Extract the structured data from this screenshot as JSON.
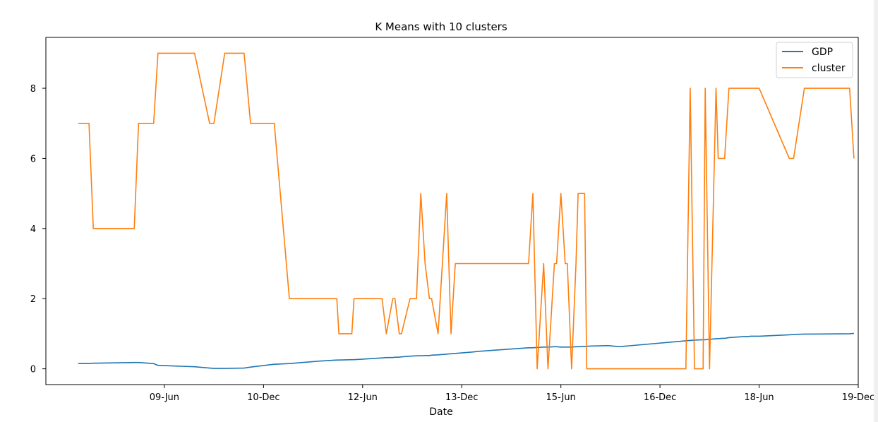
{
  "chart_data": {
    "type": "line",
    "title": "K Means with 10 clusters",
    "xlabel": "Date",
    "ylabel": "",
    "x_range": [
      -15,
      362
    ],
    "ylim": [
      -0.45,
      9.45
    ],
    "x_ticks": [
      {
        "x": 40,
        "label": "09-Jun"
      },
      {
        "x": 86,
        "label": "10-Dec"
      },
      {
        "x": 132,
        "label": "12-Jun"
      },
      {
        "x": 178,
        "label": "13-Dec"
      },
      {
        "x": 224,
        "label": "15-Jun"
      },
      {
        "x": 270,
        "label": "16-Dec"
      },
      {
        "x": 316,
        "label": "18-Jun"
      },
      {
        "x": 362,
        "label": "19-Dec"
      }
    ],
    "y_ticks": [
      0,
      2,
      4,
      6,
      8
    ],
    "grid": false,
    "legend": "top-right",
    "x": [
      0,
      5,
      7,
      26,
      28,
      35,
      37,
      54,
      61,
      63,
      68,
      77,
      80,
      84,
      91,
      98,
      100,
      112,
      120,
      121,
      127,
      128,
      141,
      143,
      146,
      147,
      149,
      150,
      154,
      157,
      159,
      161,
      163,
      164,
      167,
      171,
      173,
      175,
      177,
      179,
      181,
      183,
      186,
      209,
      211,
      213,
      216,
      218,
      221,
      222,
      224,
      226,
      227,
      229,
      231,
      232,
      235,
      236,
      238,
      239,
      245,
      246,
      248,
      251,
      282,
      284,
      286,
      290,
      291,
      293,
      296,
      297,
      299,
      300,
      302,
      309,
      311,
      312,
      313,
      316,
      330,
      332,
      337,
      339,
      358,
      360
    ],
    "series": [
      {
        "name": "GDP",
        "color": "#1f77b4",
        "values": [
          0.15,
          0.15,
          0.16,
          0.18,
          0.18,
          0.15,
          0.1,
          0.06,
          0.02,
          0.01,
          0.01,
          0.02,
          0.05,
          0.08,
          0.13,
          0.15,
          0.16,
          0.22,
          0.25,
          0.25,
          0.26,
          0.26,
          0.31,
          0.32,
          0.32,
          0.33,
          0.33,
          0.34,
          0.36,
          0.37,
          0.37,
          0.38,
          0.38,
          0.39,
          0.4,
          0.42,
          0.43,
          0.44,
          0.45,
          0.46,
          0.47,
          0.48,
          0.5,
          0.6,
          0.6,
          0.61,
          0.62,
          0.62,
          0.63,
          0.63,
          0.62,
          0.62,
          0.62,
          0.62,
          0.63,
          0.63,
          0.64,
          0.64,
          0.65,
          0.65,
          0.66,
          0.66,
          0.65,
          0.63,
          0.8,
          0.81,
          0.82,
          0.83,
          0.83,
          0.84,
          0.86,
          0.86,
          0.87,
          0.87,
          0.89,
          0.92,
          0.92,
          0.93,
          0.93,
          0.93,
          0.97,
          0.98,
          0.99,
          0.99,
          1.0,
          1.01
        ]
      },
      {
        "name": "cluster",
        "color": "#ff7f0e",
        "values": [
          7,
          7,
          4,
          4,
          7,
          7,
          9,
          9,
          7,
          7,
          9,
          9,
          7,
          7,
          7,
          2,
          2,
          2,
          2,
          1,
          1,
          2,
          2,
          1,
          2,
          2,
          1,
          1,
          2,
          2,
          5,
          3,
          2,
          2,
          1,
          5,
          1,
          3,
          3,
          3,
          3,
          3,
          3,
          3,
          5,
          0,
          3,
          0,
          3,
          3,
          5,
          3,
          3,
          0,
          3,
          5,
          5,
          0,
          0,
          0,
          0,
          0,
          0,
          0,
          0,
          8,
          0,
          0,
          8,
          0,
          8,
          6,
          6,
          6,
          8,
          8,
          8,
          8,
          8,
          8,
          6,
          6,
          8,
          8,
          8,
          6
        ]
      }
    ]
  }
}
